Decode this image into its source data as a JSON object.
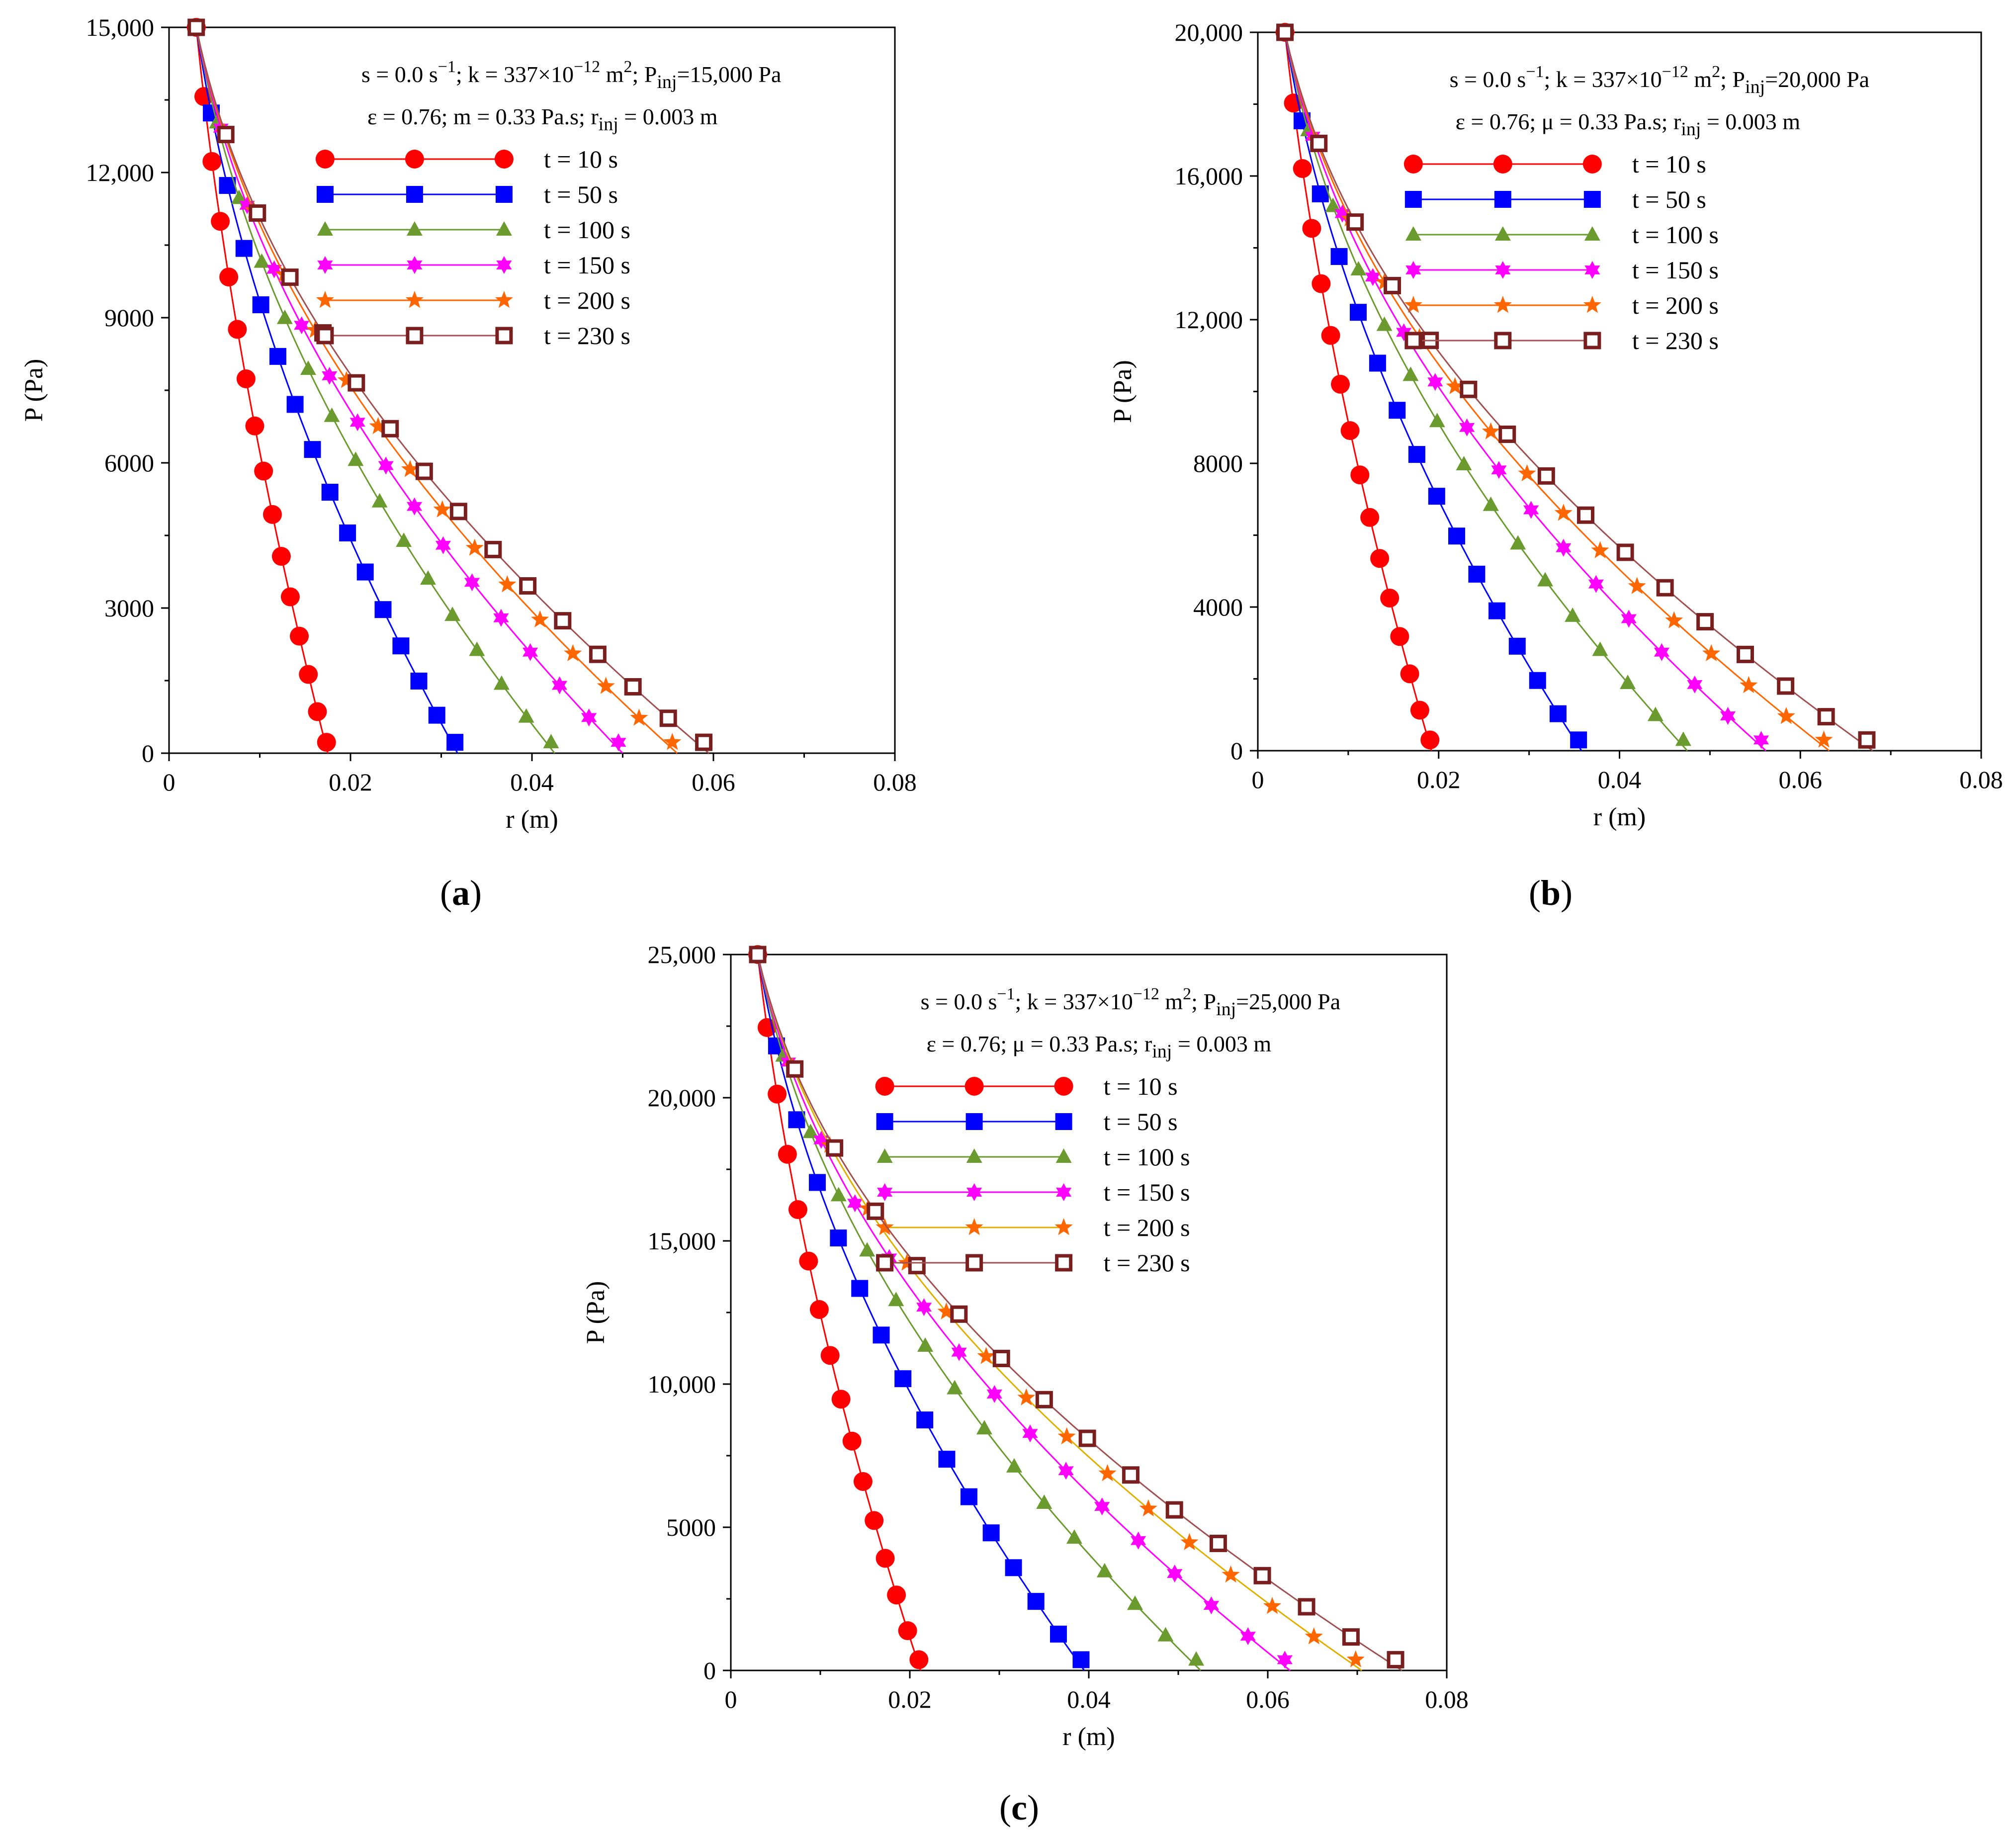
{
  "figure": {
    "panel_labels": [
      "a",
      "b",
      "c"
    ]
  },
  "colors": {
    "t10": "#ff0000",
    "t50": "#0000ff",
    "t100": "#6b9b2e",
    "t150": "#ff00ff",
    "t200": "#ff6600",
    "t230": "#7a1f1f",
    "t200_line_c": "#e0b000",
    "t230_line": "#a05050"
  },
  "chart_data": [
    {
      "type": "line",
      "panel": "a",
      "xlabel": "r (m)",
      "ylabel": "P (Pa)",
      "xlim": [
        0,
        0.08
      ],
      "ylim": [
        0,
        15000
      ],
      "xticks": [
        0,
        0.02,
        0.04,
        0.06,
        0.08
      ],
      "xtick_labels": [
        "0",
        "0.02",
        "0.04",
        "0.06",
        "0.08"
      ],
      "yticks": [
        0,
        3000,
        6000,
        9000,
        12000,
        15000
      ],
      "ytick_labels": [
        "0",
        "3000",
        "6000",
        "9000",
        "12,000",
        "15,000"
      ],
      "annotation_line1": {
        "s": "s = 0.0 s",
        "s_exp": "−1",
        "k": "; k = 337×10",
        "k_exp": "−12",
        "k_unit": " m",
        "k_unit_exp": "2",
        "p": "; P",
        "p_sub": "inj",
        "p_val": "=15,000 Pa"
      },
      "annotation_line2": {
        "eps": "ε = 0.76; m = 0.33 Pa.s; r",
        "r_sub": "inj",
        "r_val": " = 0.003 m"
      },
      "series": [
        {
          "name": "t = 10 s",
          "marker": "circle",
          "rf": 0.0175,
          "pinj": 15000
        },
        {
          "name": "t = 50 s",
          "marker": "square",
          "rf": 0.0318,
          "pinj": 15000
        },
        {
          "name": "t = 100 s",
          "marker": "triangle",
          "rf": 0.0425,
          "pinj": 15000
        },
        {
          "name": "t = 150 s",
          "marker": "star6",
          "rf": 0.05,
          "pinj": 15000
        },
        {
          "name": "t = 200 s",
          "marker": "star5",
          "rf": 0.056,
          "pinj": 15000
        },
        {
          "name": "t = 230 s",
          "marker": "hsquare",
          "rf": 0.0595,
          "pinj": 15000
        }
      ]
    },
    {
      "type": "line",
      "panel": "b",
      "xlabel": "r (m)",
      "ylabel": "P (Pa)",
      "xlim": [
        0,
        0.08
      ],
      "ylim": [
        0,
        20000
      ],
      "xticks": [
        0,
        0.02,
        0.04,
        0.06,
        0.08
      ],
      "xtick_labels": [
        "0",
        "0.02",
        "0.04",
        "0.06",
        "0.08"
      ],
      "yticks": [
        0,
        4000,
        8000,
        12000,
        16000,
        20000
      ],
      "ytick_labels": [
        "0",
        "4000",
        "8000",
        "12,000",
        "16,000",
        "20,000"
      ],
      "annotation_line1": {
        "s": "s = 0.0 s",
        "s_exp": "−1",
        "k": "; k = 337×10",
        "k_exp": "−12",
        "k_unit": " m",
        "k_unit_exp": "2",
        "p": "; P",
        "p_sub": "inj",
        "p_val": "=20,000 Pa"
      },
      "annotation_line2": {
        "eps": "ε = 0.76; μ = 0.33 Pa.s; r",
        "r_sub": "inj",
        "r_val": " = 0.003 m"
      },
      "series": [
        {
          "name": "t = 10 s",
          "marker": "circle",
          "rf": 0.0192,
          "pinj": 20000
        },
        {
          "name": "t = 50 s",
          "marker": "square",
          "rf": 0.0358,
          "pinj": 20000
        },
        {
          "name": "t = 100 s",
          "marker": "triangle",
          "rf": 0.0475,
          "pinj": 20000
        },
        {
          "name": "t = 150 s",
          "marker": "star6",
          "rf": 0.0562,
          "pinj": 20000
        },
        {
          "name": "t = 200 s",
          "marker": "star5",
          "rf": 0.0632,
          "pinj": 20000
        },
        {
          "name": "t = 230 s",
          "marker": "hsquare",
          "rf": 0.068,
          "pinj": 20000
        }
      ]
    },
    {
      "type": "line",
      "panel": "c",
      "xlabel": "r (m)",
      "ylabel": "P (Pa)",
      "xlim": [
        0,
        0.08
      ],
      "ylim": [
        0,
        25000
      ],
      "xticks": [
        0,
        0.02,
        0.04,
        0.06,
        0.08
      ],
      "xtick_labels": [
        "0",
        "0.02",
        "0.04",
        "0.06",
        "0.08"
      ],
      "yticks": [
        0,
        5000,
        10000,
        15000,
        20000,
        25000
      ],
      "ytick_labels": [
        "0",
        "5000",
        "10,000",
        "15,000",
        "20,000",
        "25,000"
      ],
      "annotation_line1": {
        "s": "s = 0.0 s",
        "s_exp": "−1",
        "k": "; k = 337×10",
        "k_exp": "−12",
        "k_unit": " m",
        "k_unit_exp": "2",
        "p": "; P",
        "p_sub": "inj",
        "p_val": "=25,000 Pa"
      },
      "annotation_line2": {
        "eps": "ε = 0.76; μ = 0.33 Pa.s; r",
        "r_sub": "inj",
        "r_val": " = 0.003 m"
      },
      "series": [
        {
          "name": "t = 10 s",
          "marker": "circle",
          "rf": 0.0212,
          "pinj": 25000
        },
        {
          "name": "t = 50 s",
          "marker": "square",
          "rf": 0.0395,
          "pinj": 25000
        },
        {
          "name": "t = 100 s",
          "marker": "triangle",
          "rf": 0.0525,
          "pinj": 25000
        },
        {
          "name": "t = 150 s",
          "marker": "star6",
          "rf": 0.0625,
          "pinj": 25000
        },
        {
          "name": "t = 200 s",
          "marker": "star5",
          "rf": 0.0705,
          "pinj": 25000
        },
        {
          "name": "t = 230 s",
          "marker": "hsquare",
          "rf": 0.075,
          "pinj": 25000
        }
      ]
    }
  ]
}
